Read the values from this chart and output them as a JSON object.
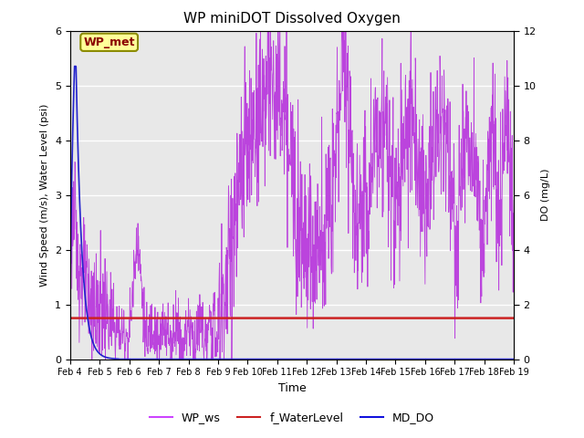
{
  "title": "WP miniDOT Dissolved Oxygen",
  "xlabel": "Time",
  "ylabel_left": "Wind Speed (m/s), Water Level (psi)",
  "ylabel_right": "DO (mg/L)",
  "annotation_text": "WP_met",
  "annotation_color": "#8B0000",
  "annotation_bg": "#FFFF99",
  "annotation_border": "#8B8B00",
  "ylim_left": [
    0.0,
    6.0
  ],
  "ylim_right": [
    0.0,
    12.0
  ],
  "xtick_labels": [
    "Feb 4",
    "Feb 5",
    "Feb 6",
    "Feb 7",
    "Feb 8",
    "Feb 9",
    "Feb 10",
    "Feb 11",
    "Feb 12",
    "Feb 13",
    "Feb 14",
    "Feb 15",
    "Feb 16",
    "Feb 17",
    "Feb 18",
    "Feb 19"
  ],
  "legend_labels": [
    "WP_ws",
    "f_WaterLevel",
    "MD_DO"
  ],
  "legend_colors": [
    "#CC44FF",
    "#CC2222",
    "#1111DD"
  ],
  "wp_ws_color": "#BB44DD",
  "f_waterlevel_color": "#CC2222",
  "md_do_color": "#2222CC",
  "bg_color": "#E8E8E8",
  "grid_color": "#FFFFFF",
  "f_waterlevel_value": 0.75,
  "md_do_spike_value": 5.35,
  "md_do_spike_day": 0.15,
  "n_points": 1500,
  "seed": 123
}
